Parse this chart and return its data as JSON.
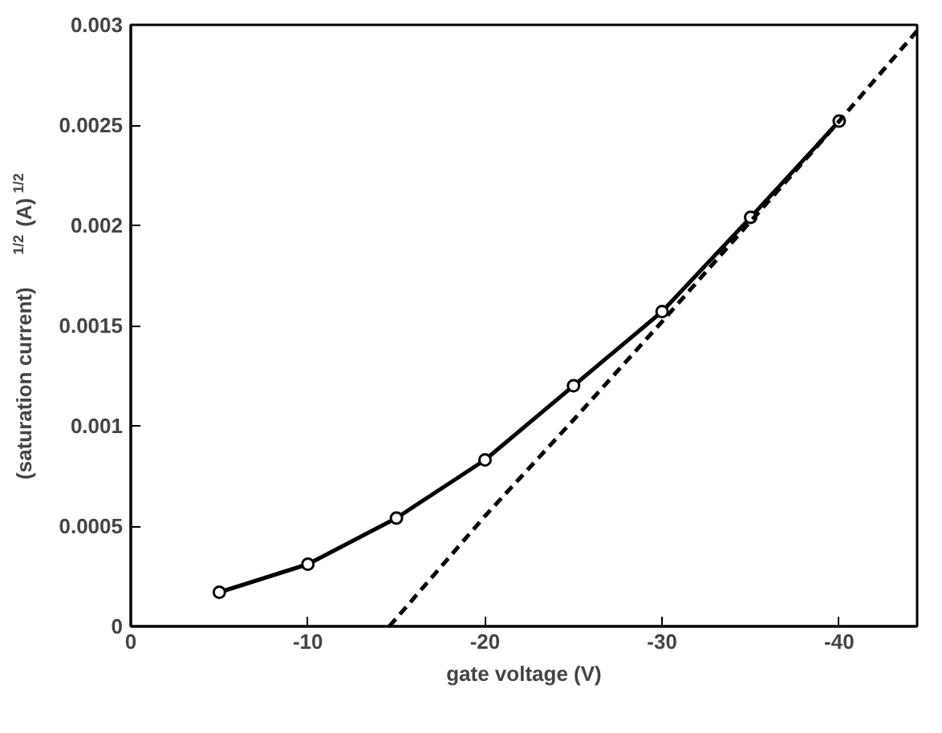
{
  "chart_data": {
    "type": "line",
    "xlabel": "gate voltage (V)",
    "ylabel": "(saturation current)$^{1/2}$ (A)$^{1/2}$",
    "xlim": [
      0,
      -44.4
    ],
    "ylim": [
      0,
      0.003
    ],
    "xticks": [
      0,
      -10,
      -20,
      -30,
      -40
    ],
    "yticks": [
      0,
      0.0005,
      0.001,
      0.0015,
      0.002,
      0.0025,
      0.003
    ],
    "grid": false,
    "series": [
      {
        "color": "#000000",
        "marker": "circle",
        "line_style": "solid",
        "x": [
          -5,
          -10,
          -15,
          -20,
          -25,
          -30,
          -35,
          -40
        ],
        "values": [
          0.00017,
          0.00031,
          0.00054,
          0.00083,
          0.0012,
          0.00157,
          0.00204,
          0.00252
        ]
      },
      {
        "color": "#000000",
        "marker": "none",
        "line_style": "dashed",
        "x": [
          -14.6,
          -20,
          -25,
          -30,
          -35,
          -40,
          -44.4
        ],
        "values": [
          0,
          0.00055,
          0.00103,
          0.00152,
          0.00202,
          0.00252,
          0.00297
        ]
      }
    ]
  }
}
